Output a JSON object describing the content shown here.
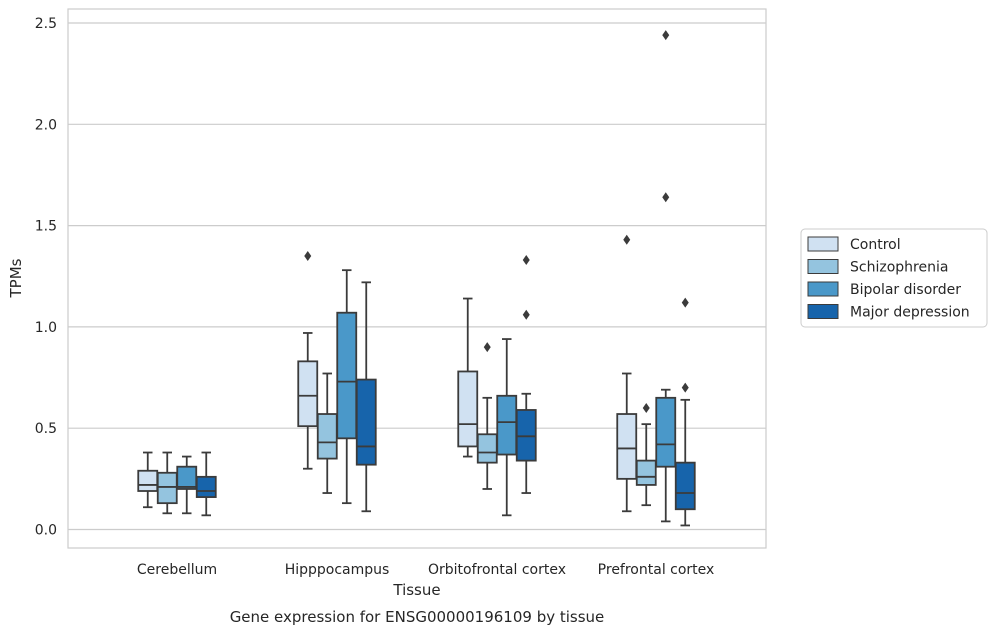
{
  "chart_data": {
    "type": "box",
    "xlabel": "Tissue",
    "ylabel": "TPMs",
    "caption": "Gene expression for ENSG00000196109 by tissue",
    "ylim": [
      -0.1,
      2.57
    ],
    "yticks": [
      "0.0",
      "0.5",
      "1.0",
      "1.5",
      "2.0",
      "2.5"
    ],
    "grid": "horizontal",
    "legend_position": "right",
    "categories": [
      "Cerebellum",
      "Hipppocampus",
      "Orbitofrontal cortex",
      "Prefrontal cortex"
    ],
    "series": [
      {
        "name": "Control",
        "color": "#d0e1f2",
        "boxes": [
          {
            "whislo": 0.11,
            "q1": 0.19,
            "med": 0.22,
            "q3": 0.29,
            "whishi": 0.38,
            "fliers": []
          },
          {
            "whislo": 0.3,
            "q1": 0.51,
            "med": 0.66,
            "q3": 0.83,
            "whishi": 0.97,
            "fliers": [
              1.35
            ]
          },
          {
            "whislo": 0.36,
            "q1": 0.41,
            "med": 0.52,
            "q3": 0.78,
            "whishi": 1.14,
            "fliers": []
          },
          {
            "whislo": 0.09,
            "q1": 0.25,
            "med": 0.4,
            "q3": 0.57,
            "whishi": 0.77,
            "fliers": [
              1.43
            ]
          }
        ]
      },
      {
        "name": "Schizophrenia",
        "color": "#94c4df",
        "boxes": [
          {
            "whislo": 0.08,
            "q1": 0.13,
            "med": 0.21,
            "q3": 0.28,
            "whishi": 0.38,
            "fliers": []
          },
          {
            "whislo": 0.18,
            "q1": 0.35,
            "med": 0.43,
            "q3": 0.57,
            "whishi": 0.77,
            "fliers": []
          },
          {
            "whislo": 0.2,
            "q1": 0.33,
            "med": 0.38,
            "q3": 0.47,
            "whishi": 0.65,
            "fliers": [
              0.9
            ]
          },
          {
            "whislo": 0.12,
            "q1": 0.22,
            "med": 0.26,
            "q3": 0.34,
            "whishi": 0.52,
            "fliers": [
              0.6
            ]
          }
        ]
      },
      {
        "name": "Bipolar disorder",
        "color": "#4a98c9",
        "boxes": [
          {
            "whislo": 0.08,
            "q1": 0.2,
            "med": 0.21,
            "q3": 0.31,
            "whishi": 0.36,
            "fliers": []
          },
          {
            "whislo": 0.13,
            "q1": 0.45,
            "med": 0.73,
            "q3": 1.07,
            "whishi": 1.28,
            "fliers": []
          },
          {
            "whislo": 0.07,
            "q1": 0.37,
            "med": 0.53,
            "q3": 0.66,
            "whishi": 0.94,
            "fliers": []
          },
          {
            "whislo": 0.04,
            "q1": 0.31,
            "med": 0.42,
            "q3": 0.65,
            "whishi": 0.69,
            "fliers": [
              1.64,
              2.44
            ]
          }
        ]
      },
      {
        "name": "Major depression",
        "color": "#1764ab",
        "boxes": [
          {
            "whislo": 0.07,
            "q1": 0.16,
            "med": 0.19,
            "q3": 0.26,
            "whishi": 0.38,
            "fliers": []
          },
          {
            "whislo": 0.09,
            "q1": 0.32,
            "med": 0.41,
            "q3": 0.74,
            "whishi": 1.22,
            "fliers": []
          },
          {
            "whislo": 0.18,
            "q1": 0.34,
            "med": 0.46,
            "q3": 0.59,
            "whishi": 0.67,
            "fliers": [
              1.06,
              1.33
            ]
          },
          {
            "whislo": 0.02,
            "q1": 0.1,
            "med": 0.18,
            "q3": 0.33,
            "whishi": 0.64,
            "fliers": [
              0.7,
              1.12
            ]
          }
        ]
      }
    ]
  }
}
